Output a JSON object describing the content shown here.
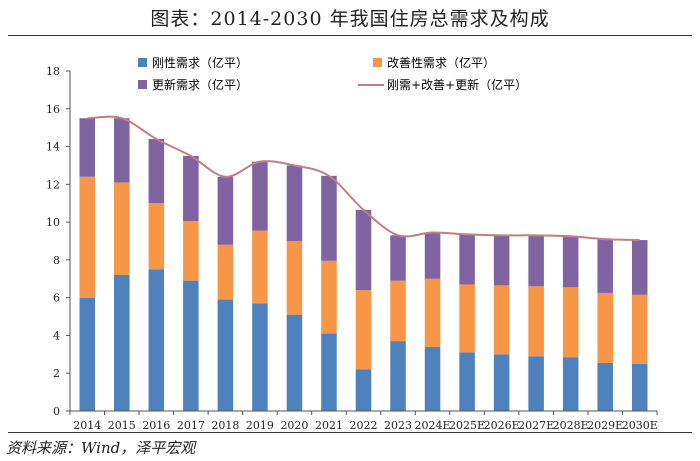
{
  "title": "图表：2014-2030 年我国住房总需求及构成",
  "source": "资料来源：Wind，泽平宏观",
  "colors": {
    "rigid": "#4F81BD",
    "improve": "#F79646",
    "renew": "#8064A2",
    "total_line": "#C0807F"
  },
  "chart_data": {
    "type": "bar",
    "stacked": true,
    "categories": [
      "2014",
      "2015",
      "2016",
      "2017",
      "2018",
      "2019",
      "2020",
      "2021",
      "2022",
      "2023",
      "2024E",
      "2025E",
      "2026E",
      "2027E",
      "2028E",
      "2029E",
      "2030E"
    ],
    "series": [
      {
        "name": "刚性需求（亿平）",
        "values": [
          6.0,
          7.2,
          7.5,
          6.9,
          5.9,
          5.7,
          5.1,
          4.1,
          2.2,
          3.7,
          3.4,
          3.1,
          3.0,
          2.9,
          2.85,
          2.55,
          2.5
        ]
      },
      {
        "name": "改善性需求（亿平）",
        "values": [
          6.4,
          4.9,
          3.5,
          3.15,
          2.9,
          3.85,
          3.9,
          3.85,
          4.2,
          3.2,
          3.6,
          3.6,
          3.65,
          3.7,
          3.7,
          3.7,
          3.65
        ]
      },
      {
        "name": "更新需求（亿平）",
        "values": [
          3.1,
          3.4,
          3.4,
          3.45,
          3.6,
          3.65,
          4.0,
          4.5,
          4.25,
          2.4,
          2.45,
          2.65,
          2.65,
          2.7,
          2.7,
          2.85,
          2.9
        ]
      }
    ],
    "line": {
      "name": "刚需+改善+更新（亿平）",
      "values": [
        15.5,
        15.5,
        14.4,
        13.5,
        12.4,
        13.2,
        13.0,
        12.45,
        10.65,
        9.3,
        9.45,
        9.35,
        9.3,
        9.3,
        9.25,
        9.1,
        9.05
      ]
    },
    "ylim": [
      0,
      18
    ],
    "yticks": [
      "0",
      "2",
      "4",
      "6",
      "8",
      "10",
      "12",
      "14",
      "16",
      "18"
    ],
    "xlabel": "",
    "ylabel": ""
  }
}
